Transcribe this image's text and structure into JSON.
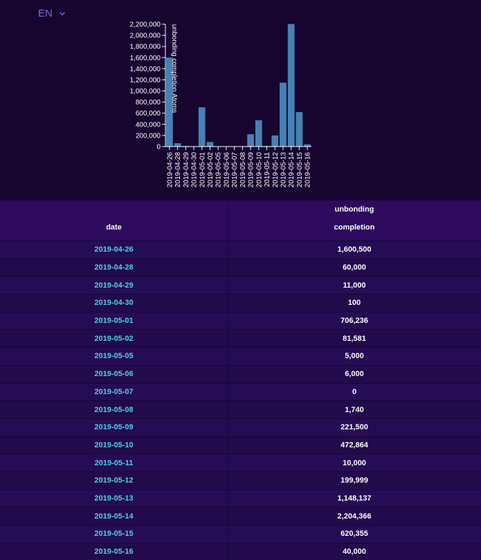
{
  "header": {
    "language": "EN"
  },
  "chart_data": {
    "type": "bar",
    "title": "",
    "xlabel": "",
    "ylabel": "unbonding completion Atoms",
    "categories": [
      "2019-04-26",
      "2019-04-28",
      "2019-04-29",
      "2019-04-30",
      "2019-05-01",
      "2019-05-02",
      "2019-05-05",
      "2019-05-06",
      "2019-05-07",
      "2019-05-08",
      "2019-05-09",
      "2019-05-10",
      "2019-05-11",
      "2019-05-12",
      "2019-05-13",
      "2019-05-14",
      "2019-05-15",
      "2019-05-16"
    ],
    "values": [
      1600500,
      60000,
      11000,
      100,
      706236,
      81581,
      5000,
      6000,
      0,
      1740,
      221500,
      472864,
      10000,
      199999,
      1148137,
      2204366,
      620355,
      40000
    ],
    "ylim": [
      0,
      2200000
    ],
    "yticks": [
      "0",
      "200,000",
      "400,000",
      "600,000",
      "800,000",
      "1,000,000",
      "1,200,000",
      "1,400,000",
      "1,600,000",
      "1,800,000",
      "2,000,000",
      "2,200,000"
    ],
    "grid": false,
    "bar_color": "#4682b4"
  },
  "table": {
    "headers": [
      "date",
      "unbonding completion"
    ],
    "rows": [
      {
        "date": "2019-04-26",
        "value": "1,600,500"
      },
      {
        "date": "2019-04-28",
        "value": "60,000"
      },
      {
        "date": "2019-04-29",
        "value": "11,000"
      },
      {
        "date": "2019-04-30",
        "value": "100"
      },
      {
        "date": "2019-05-01",
        "value": "706,236"
      },
      {
        "date": "2019-05-02",
        "value": "81,581"
      },
      {
        "date": "2019-05-05",
        "value": "5,000"
      },
      {
        "date": "2019-05-06",
        "value": "6,000"
      },
      {
        "date": "2019-05-07",
        "value": "0"
      },
      {
        "date": "2019-05-08",
        "value": "1,740"
      },
      {
        "date": "2019-05-09",
        "value": "221,500"
      },
      {
        "date": "2019-05-10",
        "value": "472,864"
      },
      {
        "date": "2019-05-11",
        "value": "10,000"
      },
      {
        "date": "2019-05-12",
        "value": "199,999"
      },
      {
        "date": "2019-05-13",
        "value": "1,148,137"
      },
      {
        "date": "2019-05-14",
        "value": "2,204,366"
      },
      {
        "date": "2019-05-15",
        "value": "620,355"
      },
      {
        "date": "2019-05-16",
        "value": "40,000"
      }
    ]
  }
}
